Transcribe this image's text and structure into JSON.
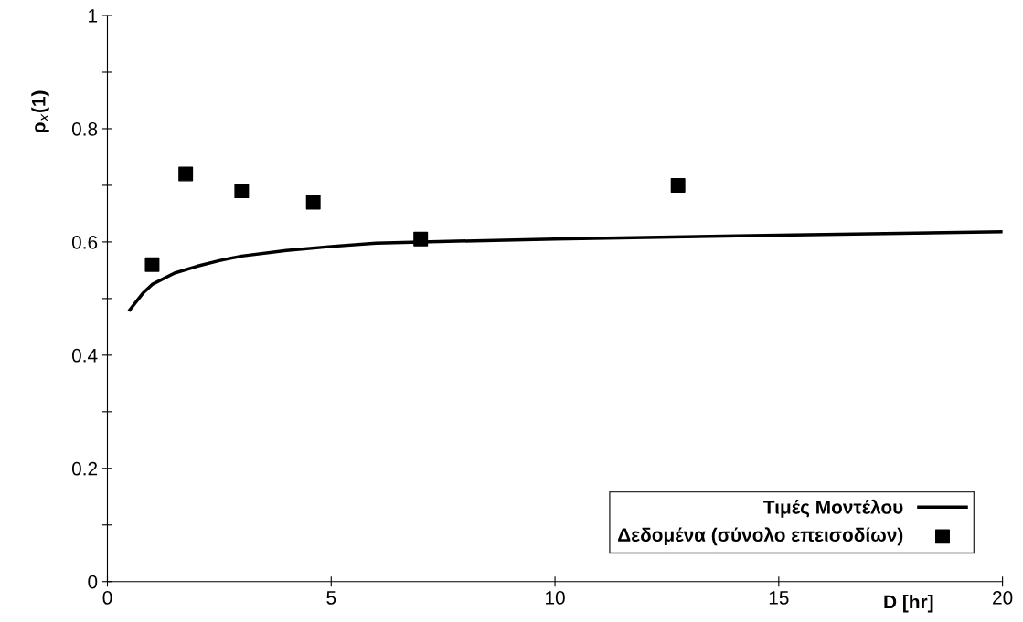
{
  "chart_data": {
    "type": "line",
    "xlabel": "D [hr]",
    "ylabel": "ρ$_{x}$(1)",
    "xlim": [
      0,
      20
    ],
    "ylim": [
      0,
      1
    ],
    "xticks": [
      0,
      5,
      10,
      15,
      20
    ],
    "yticks": [
      0,
      {
        "value": 0.1,
        "label": null
      },
      0.2,
      {
        "value": 0.3,
        "label": null
      },
      0.4,
      {
        "value": 0.5,
        "label": null
      },
      0.6,
      {
        "value": 0.7,
        "label": null
      },
      0.8,
      {
        "value": 0.9,
        "label": null
      },
      1
    ],
    "grid": false,
    "legend": "bottom right",
    "series": [
      {
        "name": "Τιμές Μοντέλου",
        "color": "#000000",
        "marker": "none",
        "x": [
          0.5,
          0.8,
          1,
          1.5,
          2,
          2.5,
          3,
          4,
          5,
          6,
          7,
          10,
          15,
          20
        ],
        "values": [
          0.48,
          0.51,
          0.525,
          0.545,
          0.557,
          0.567,
          0.575,
          0.585,
          0.592,
          0.598,
          0.6,
          0.605,
          0.612,
          0.618
        ]
      },
      {
        "name": "Δεδομένα (σύνολο επεισοδίων)",
        "type": "scatter",
        "color": "#000000",
        "marker": "square",
        "x": [
          1,
          1.75,
          3,
          4.6,
          7,
          12.75
        ],
        "values": [
          0.56,
          0.72,
          0.69,
          0.67,
          0.605,
          0.7
        ]
      }
    ]
  }
}
